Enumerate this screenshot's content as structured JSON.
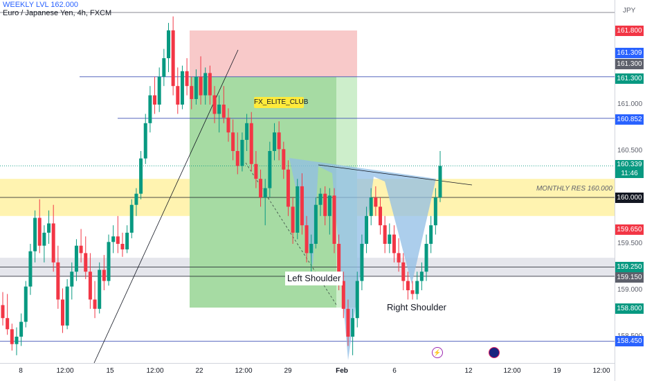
{
  "header": {
    "title": "WEEKLY LVL 162.000",
    "subtitle": "Euro / Japanese Yen, 4h, FXCM"
  },
  "chart_data": {
    "type": "candlestick",
    "currency": "JPY",
    "ylim": [
      158.3,
      162.1
    ],
    "price_ticks": [
      "161.000",
      "160.500",
      "159.500",
      "159.000",
      "158.500"
    ],
    "x_ticks": [
      "8",
      "12:00",
      "15",
      "12:00",
      "22",
      "12:00",
      "29",
      "Feb",
      "6",
      "12",
      "12:00",
      "19",
      "12:00"
    ],
    "price_badges": [
      {
        "label": "161.800",
        "color": "#f23645"
      },
      {
        "label": "161.309",
        "color": "#2962ff"
      },
      {
        "label": "161.300",
        "color": "#5d606b"
      },
      {
        "label": "161.300",
        "color": "#089981"
      },
      {
        "label": "160.852",
        "color": "#2962ff"
      },
      {
        "label": "160.000",
        "color": "#131722"
      },
      {
        "label": "159.650",
        "color": "#f23645"
      },
      {
        "label": "159.250",
        "color": "#089981"
      },
      {
        "label": "159.150",
        "color": "#5d606b"
      },
      {
        "label": "158.800",
        "color": "#089981"
      },
      {
        "label": "158.450",
        "color": "#2962ff"
      }
    ],
    "last_price": {
      "price": "160.339",
      "countdown": "11:46"
    },
    "annotations": {
      "fx_label": "FX_ELITE_CLUB",
      "left_shoulder": "Left Shoulder",
      "right_shoulder": "Right Shoulder",
      "monthly_res": "MONTHLY RES 160.000"
    },
    "horizontal_levels": [
      161.3,
      160.852,
      160.0,
      159.25,
      159.15,
      158.45
    ],
    "zones": [
      {
        "name": "monthly-resistance",
        "from": 159.8,
        "to": 160.2,
        "color": "#fff3b0"
      },
      {
        "name": "support",
        "from": 159.15,
        "to": 159.35,
        "color": "#e5e6ec"
      }
    ],
    "candles": [
      [
        158.84,
        158.98,
        158.62,
        158.7
      ],
      [
        158.7,
        158.96,
        158.52,
        158.58
      ],
      [
        158.58,
        158.64,
        158.35,
        158.42
      ],
      [
        158.42,
        158.6,
        158.3,
        158.5
      ],
      [
        158.5,
        158.75,
        158.4,
        158.66
      ],
      [
        158.66,
        159.1,
        158.6,
        159.04
      ],
      [
        159.04,
        159.5,
        158.95,
        159.42
      ],
      [
        159.42,
        159.86,
        159.3,
        159.78
      ],
      [
        159.78,
        159.98,
        159.4,
        159.48
      ],
      [
        159.48,
        159.7,
        159.3,
        159.62
      ],
      [
        159.62,
        159.86,
        159.5,
        159.72
      ],
      [
        159.72,
        159.92,
        159.2,
        159.3
      ],
      [
        159.3,
        159.48,
        158.8,
        158.9
      ],
      [
        158.9,
        159.02,
        158.54,
        158.62
      ],
      [
        158.62,
        159.12,
        158.58,
        159.04
      ],
      [
        159.04,
        159.3,
        158.9,
        159.2
      ],
      [
        159.2,
        159.55,
        159.1,
        159.48
      ],
      [
        159.48,
        159.66,
        159.3,
        159.4
      ],
      [
        159.4,
        159.58,
        159.12,
        159.2
      ],
      [
        159.2,
        159.4,
        158.8,
        158.9
      ],
      [
        158.9,
        159.1,
        158.7,
        158.8
      ],
      [
        158.8,
        159.3,
        158.75,
        159.22
      ],
      [
        159.22,
        159.38,
        159.0,
        159.1
      ],
      [
        159.1,
        159.6,
        159.05,
        159.52
      ],
      [
        159.52,
        159.7,
        159.4,
        159.58
      ],
      [
        159.58,
        159.8,
        159.4,
        159.5
      ],
      [
        159.5,
        159.62,
        159.36,
        159.44
      ],
      [
        159.44,
        159.7,
        159.4,
        159.62
      ],
      [
        159.62,
        159.98,
        159.56,
        159.92
      ],
      [
        159.92,
        160.1,
        159.8,
        160.04
      ],
      [
        160.04,
        160.5,
        159.98,
        160.42
      ],
      [
        160.42,
        160.9,
        160.36,
        160.8
      ],
      [
        160.8,
        161.2,
        160.7,
        161.1
      ],
      [
        161.1,
        161.3,
        160.9,
        161.0
      ],
      [
        161.0,
        161.4,
        160.92,
        161.3
      ],
      [
        161.3,
        161.6,
        161.2,
        161.5
      ],
      [
        161.5,
        161.88,
        161.35,
        161.8
      ],
      [
        161.8,
        161.95,
        161.1,
        161.2
      ],
      [
        161.2,
        161.4,
        160.9,
        161.0
      ],
      [
        161.0,
        161.42,
        160.95,
        161.36
      ],
      [
        161.36,
        161.5,
        161.1,
        161.2
      ],
      [
        161.2,
        161.3,
        160.95,
        161.06
      ],
      [
        161.06,
        161.38,
        161.0,
        161.3
      ],
      [
        161.3,
        161.52,
        161.0,
        161.1
      ],
      [
        161.1,
        161.4,
        161.0,
        161.34
      ],
      [
        161.34,
        161.42,
        161.0,
        161.1
      ],
      [
        161.1,
        161.2,
        160.8,
        160.9
      ],
      [
        160.9,
        161.1,
        160.7,
        161.0
      ],
      [
        161.0,
        161.2,
        160.8,
        160.86
      ],
      [
        160.86,
        160.96,
        160.6,
        160.7
      ],
      [
        160.7,
        160.84,
        160.4,
        160.5
      ],
      [
        160.5,
        160.7,
        160.25,
        160.34
      ],
      [
        160.34,
        160.7,
        160.28,
        160.62
      ],
      [
        160.62,
        160.9,
        160.5,
        160.8
      ],
      [
        160.8,
        160.92,
        160.28,
        160.36
      ],
      [
        160.36,
        160.5,
        160.1,
        160.2
      ],
      [
        160.2,
        160.3,
        159.9,
        160.0
      ],
      [
        160.0,
        160.2,
        159.7,
        160.1
      ],
      [
        160.1,
        160.6,
        160.0,
        160.5
      ],
      [
        160.5,
        160.8,
        160.4,
        160.7
      ],
      [
        160.7,
        160.82,
        160.4,
        160.52
      ],
      [
        160.52,
        160.6,
        160.2,
        160.3
      ],
      [
        160.3,
        160.4,
        159.8,
        159.9
      ],
      [
        159.9,
        160.0,
        159.5,
        159.62
      ],
      [
        159.62,
        160.2,
        159.55,
        160.12
      ],
      [
        160.12,
        160.26,
        159.6,
        159.7
      ],
      [
        159.7,
        159.8,
        159.3,
        159.4
      ],
      [
        159.4,
        159.6,
        159.2,
        159.5
      ],
      [
        159.5,
        160.0,
        159.45,
        159.92
      ],
      [
        159.92,
        160.1,
        159.8,
        160.04
      ],
      [
        160.04,
        160.12,
        159.7,
        159.8
      ],
      [
        159.8,
        160.1,
        159.6,
        160.02
      ],
      [
        160.02,
        160.1,
        159.4,
        159.5
      ],
      [
        159.5,
        159.6,
        159.0,
        159.1
      ],
      [
        159.1,
        159.2,
        158.7,
        158.8
      ],
      [
        158.8,
        158.9,
        158.4,
        158.5
      ],
      [
        158.5,
        158.8,
        158.3,
        158.7
      ],
      [
        158.7,
        159.2,
        158.6,
        159.1
      ],
      [
        159.1,
        159.6,
        159.0,
        159.5
      ],
      [
        159.5,
        159.9,
        159.4,
        159.8
      ],
      [
        159.8,
        160.1,
        159.7,
        160.0
      ],
      [
        160.0,
        160.12,
        159.8,
        159.9
      ],
      [
        159.9,
        160.0,
        159.6,
        159.7
      ],
      [
        159.7,
        159.8,
        159.4,
        159.5
      ],
      [
        159.5,
        159.72,
        159.4,
        159.6
      ],
      [
        159.6,
        159.7,
        159.3,
        159.4
      ],
      [
        159.4,
        159.56,
        159.2,
        159.3
      ],
      [
        159.3,
        159.4,
        159.0,
        159.1
      ],
      [
        159.1,
        159.2,
        158.9,
        159.0
      ],
      [
        159.0,
        159.1,
        158.9,
        158.96
      ],
      [
        158.96,
        159.2,
        158.9,
        159.1
      ],
      [
        159.1,
        159.3,
        159.0,
        159.2
      ],
      [
        159.2,
        159.6,
        159.1,
        159.5
      ],
      [
        159.5,
        159.8,
        159.4,
        159.7
      ],
      [
        159.7,
        160.1,
        159.6,
        160.0
      ],
      [
        160.0,
        160.5,
        159.95,
        160.34
      ]
    ]
  }
}
